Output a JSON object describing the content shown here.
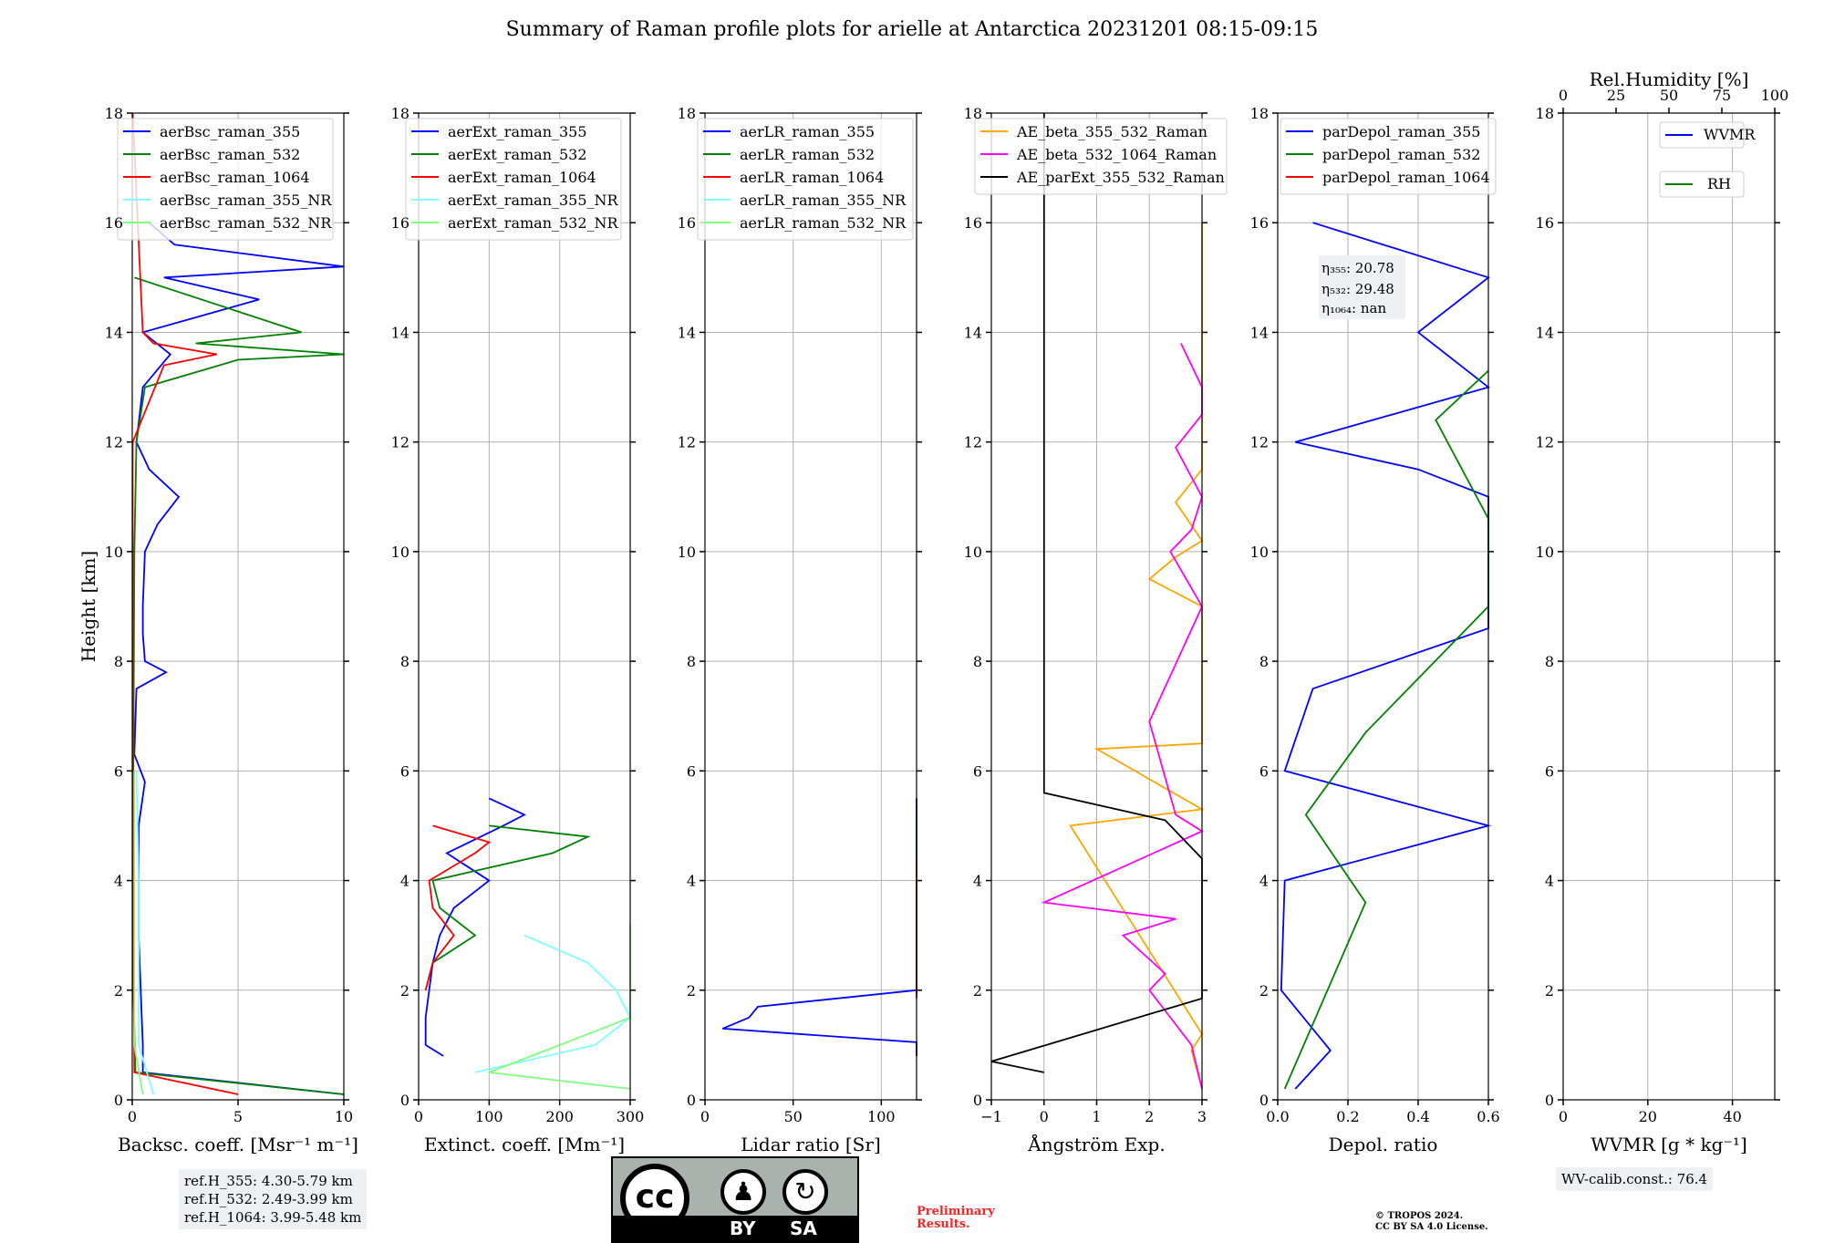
{
  "title": "Summary of Raman profile plots for arielle at Antarctica 20231201 08:15-09:15",
  "ylabel": "Height [km]",
  "chart_data": [
    {
      "type": "line",
      "name": "backscatter",
      "xlabel": "Backsc. coeff. [Msr⁻¹ m⁻¹]",
      "xlim": [
        0,
        10
      ],
      "xticks": [
        0,
        5,
        10
      ],
      "ylim": [
        0,
        18
      ],
      "yticks": [
        0,
        2,
        4,
        6,
        8,
        10,
        12,
        14,
        16,
        18
      ],
      "legend": "top",
      "grid": true,
      "series": [
        {
          "name": "aerBsc_raman_355",
          "color": "#0000ff",
          "y": [
            0.1,
            0.5,
            1,
            2,
            3,
            4,
            5,
            5.8,
            6,
            6.3,
            7.5,
            7.8,
            8,
            8.5,
            9,
            10,
            10.5,
            11,
            11.5,
            12,
            13,
            13.6,
            14,
            14.6,
            15,
            15.2,
            15.6,
            16
          ],
          "x": [
            10,
            0.5,
            0.5,
            0.4,
            0.3,
            0.3,
            0.3,
            0.6,
            0.4,
            0.1,
            0.2,
            1.6,
            0.6,
            0.5,
            0.5,
            0.6,
            1.2,
            2.2,
            0.8,
            0.2,
            0.5,
            1.8,
            0.5,
            6,
            1.5,
            10,
            2,
            0.8
          ]
        },
        {
          "name": "aerBsc_raman_532",
          "color": "#008000",
          "y": [
            0.1,
            0.5,
            2,
            6,
            10,
            12,
            13,
            13.5,
            13.6,
            13.8,
            14,
            15
          ],
          "x": [
            10,
            0.15,
            0.05,
            0.05,
            0.1,
            0.2,
            0.6,
            5,
            10,
            3,
            8,
            0.1
          ]
        },
        {
          "name": "aerBsc_raman_1064",
          "color": "#ff0000",
          "y": [
            0.1,
            0.5,
            6,
            12,
            13.4,
            13.6,
            13.8,
            14,
            18
          ],
          "x": [
            5,
            0.1,
            0.02,
            0.02,
            1.5,
            4,
            1,
            0.5,
            0.02
          ]
        },
        {
          "name": "aerBsc_raman_355_NR",
          "color": "#7fffff",
          "y": [
            0.1,
            1,
            2,
            4,
            6
          ],
          "x": [
            1,
            0.3,
            0.3,
            0.3,
            0.2
          ]
        },
        {
          "name": "aerBsc_raman_532_NR",
          "color": "#7fff7f",
          "y": [
            0.1,
            1,
            2,
            4,
            6
          ],
          "x": [
            0.5,
            0.1,
            0.1,
            0.1,
            0.1
          ]
        }
      ]
    },
    {
      "type": "line",
      "name": "extinction",
      "xlabel": "Extinct. coeff. [Mm⁻¹]",
      "xlim": [
        0,
        300
      ],
      "xticks": [
        0,
        100,
        200,
        300
      ],
      "ylim": [
        0,
        18
      ],
      "yticks": [
        0,
        2,
        4,
        6,
        8,
        10,
        12,
        14,
        16,
        18
      ],
      "legend": "top",
      "grid": true,
      "series": [
        {
          "name": "aerExt_raman_355",
          "color": "#0000ff",
          "y": [
            0.8,
            1,
            1.5,
            2,
            2.5,
            3,
            3.5,
            4,
            4.5,
            5,
            5.2,
            5.5
          ],
          "x": [
            35,
            10,
            10,
            15,
            20,
            30,
            50,
            100,
            40,
            120,
            150,
            100
          ]
        },
        {
          "name": "aerExt_raman_532",
          "color": "#008000",
          "y": [
            2,
            2.5,
            3,
            3.5,
            4,
            4.5,
            4.8,
            5
          ],
          "x": [
            10,
            20,
            80,
            30,
            20,
            190,
            240,
            100
          ]
        },
        {
          "name": "aerExt_raman_1064",
          "color": "#ff0000",
          "y": [
            2,
            2.5,
            3,
            3.5,
            4,
            4.5,
            4.7,
            5
          ],
          "x": [
            10,
            20,
            50,
            20,
            15,
            80,
            100,
            20
          ]
        },
        {
          "name": "aerExt_raman_355_NR",
          "color": "#7fffff",
          "y": [
            0.5,
            1,
            1.5,
            2,
            2.5,
            3
          ],
          "x": [
            80,
            250,
            300,
            280,
            240,
            150
          ]
        },
        {
          "name": "aerExt_raman_532_NR",
          "color": "#7fff7f",
          "y": [
            0.2,
            0.5,
            1,
            1.5,
            2,
            2.5,
            2.8,
            3.2
          ],
          "x": [
            300,
            100,
            200,
            300,
            300,
            300,
            300,
            300
          ]
        }
      ]
    },
    {
      "type": "line",
      "name": "lidar_ratio",
      "xlabel": "Lidar ratio [Sr]",
      "xlim": [
        0,
        120
      ],
      "xticks": [
        0,
        50,
        100
      ],
      "ylim": [
        0,
        18
      ],
      "yticks": [
        0,
        2,
        4,
        6,
        8,
        10,
        12,
        14,
        16,
        18
      ],
      "legend": "top",
      "grid": true,
      "series": [
        {
          "name": "aerLR_raman_355",
          "color": "#0000ff",
          "y": [
            0.8,
            1.05,
            1.3,
            1.5,
            1.7,
            2,
            2.6,
            3,
            3.5,
            4,
            4.5,
            4.9,
            5.5
          ],
          "x": [
            120,
            120,
            10,
            25,
            30,
            120,
            120,
            120,
            120,
            120,
            120,
            120,
            120
          ]
        },
        {
          "name": "aerLR_raman_532",
          "color": "#008000",
          "y": [
            1.95,
            3.6,
            4.2,
            5.2
          ],
          "x": [
            120,
            120,
            120,
            120
          ]
        },
        {
          "name": "aerLR_raman_1064",
          "color": "#ff0000",
          "y": [
            1.85,
            2.4,
            2.8,
            4,
            4.4
          ],
          "x": [
            120,
            120,
            120,
            120,
            120
          ]
        },
        {
          "name": "aerLR_raman_355_NR",
          "color": "#7fffff",
          "y": [],
          "x": []
        },
        {
          "name": "aerLR_raman_532_NR",
          "color": "#7fff7f",
          "y": [],
          "x": []
        }
      ]
    },
    {
      "type": "line",
      "name": "angstrom",
      "xlabel": "Ångström Exp.",
      "xlim": [
        -1,
        3
      ],
      "xticks": [
        -1,
        0,
        1,
        2,
        3
      ],
      "ylim": [
        0,
        18
      ],
      "yticks": [
        0,
        2,
        4,
        6,
        8,
        10,
        12,
        14,
        16,
        18
      ],
      "legend": "top",
      "grid": true,
      "series": [
        {
          "name": "AE_beta_355_532_Raman",
          "color": "#ffa500",
          "y": [
            0.2,
            0.9,
            1.2,
            5.0,
            5.3,
            6.4,
            6.5,
            7.4,
            9.0,
            9.5,
            9.9,
            10.2,
            10.9,
            11.5,
            12.0,
            13.2,
            13.5,
            14.5,
            15.5,
            16.0
          ],
          "x": [
            3,
            2.8,
            3,
            0.5,
            3,
            1,
            3,
            3,
            3,
            2,
            2.5,
            3,
            2.5,
            3,
            3,
            3,
            3,
            3,
            3,
            3
          ]
        },
        {
          "name": "AE_beta_532_1064_Raman",
          "color": "#ff00ff",
          "y": [
            0.2,
            1,
            2,
            2.3,
            3,
            3.3,
            3.6,
            4.9,
            5.2,
            6.9,
            9.0,
            10,
            10.4,
            11,
            11.9,
            12.5,
            13,
            13.8
          ],
          "x": [
            3,
            2.8,
            2,
            2.3,
            1.5,
            2.5,
            0,
            3,
            2.5,
            2,
            3,
            2.4,
            2.8,
            3,
            2.5,
            3,
            3,
            2.6
          ]
        },
        {
          "name": "AE_parExt_355_532_Raman",
          "color": "#000000",
          "y": [
            0.5,
            0.7,
            1.85,
            2.3,
            2.9,
            3.4,
            4.4,
            5.1,
            5.6,
            5.7,
            18
          ],
          "x": [
            0,
            -1,
            3,
            3,
            3,
            3,
            3,
            2.3,
            0,
            0,
            0
          ]
        }
      ]
    },
    {
      "type": "line",
      "name": "depol",
      "xlabel": "Depol. ratio",
      "xlim": [
        0,
        0.6
      ],
      "xticks": [
        0,
        0.2,
        0.4,
        0.6
      ],
      "xticklabels": [
        "0.0",
        "0.2",
        "0.4",
        "0.6"
      ],
      "ylim": [
        0,
        18
      ],
      "yticks": [
        0,
        2,
        4,
        6,
        8,
        10,
        12,
        14,
        16,
        18
      ],
      "legend": "top-left",
      "grid": true,
      "series": [
        {
          "name": "parDepol_raman_355",
          "color": "#0000ff",
          "y": [
            0.2,
            0.9,
            2,
            4,
            5,
            6,
            7.5,
            8.6,
            9.0,
            9.3,
            10,
            10.3,
            11,
            11.5,
            12,
            13,
            14,
            15,
            16
          ],
          "x": [
            0.05,
            0.15,
            0.01,
            0.02,
            0.6,
            0.02,
            0.1,
            0.6,
            0.6,
            0.6,
            0.6,
            0.6,
            0.6,
            0.4,
            0.05,
            0.6,
            0.4,
            0.6,
            0.1
          ]
        },
        {
          "name": "parDepol_raman_532",
          "color": "#008000",
          "y": [
            0.2,
            3.6,
            5.2,
            6.7,
            9.0,
            10.6,
            12.4,
            13.3
          ],
          "x": [
            0.02,
            0.25,
            0.08,
            0.25,
            0.6,
            0.6,
            0.45,
            0.6
          ]
        },
        {
          "name": "parDepol_raman_1064",
          "color": "#ff0000",
          "y": [],
          "x": []
        }
      ],
      "annotation": {
        "eta355": "η₃₅₅: 20.78",
        "eta532": "η₅₃₂: 29.48",
        "eta1064": "η₁₀₆₄: nan"
      }
    },
    {
      "type": "line",
      "name": "wvmr",
      "xlabel": "WVMR [g * kg⁻¹]",
      "xlim": [
        0,
        50
      ],
      "xticks": [
        0,
        20,
        40
      ],
      "ylim": [
        0,
        18
      ],
      "yticks": [
        0,
        2,
        4,
        6,
        8,
        10,
        12,
        14,
        16,
        18
      ],
      "top_xlabel": "Rel.Humidity [%]",
      "top_xlim": [
        0,
        100
      ],
      "top_xticks": [
        0,
        25,
        50,
        75,
        100
      ],
      "legend": "top-right",
      "grid": true,
      "series": [
        {
          "name": "WVMR",
          "color": "#0000ff",
          "y": [],
          "x": []
        },
        {
          "name": "RH",
          "color": "#008000",
          "y": [],
          "x": []
        }
      ]
    }
  ],
  "info": {
    "ref_h_355": "ref.H_355: 4.30-5.79 km",
    "ref_h_532": "ref.H_532: 2.49-3.99 km",
    "ref_h_1064": "ref.H_1064: 3.99-5.48 km",
    "wv_calib": "WV-calib.const.: 76.4",
    "prelim_1": "Preliminary",
    "prelim_2": "Results.",
    "copyright_1": "© TROPOS 2024.",
    "copyright_2": "CC BY SA 4.0 License."
  },
  "license_badge": {
    "cc": "cc",
    "by": "BY",
    "sa": "SA"
  }
}
